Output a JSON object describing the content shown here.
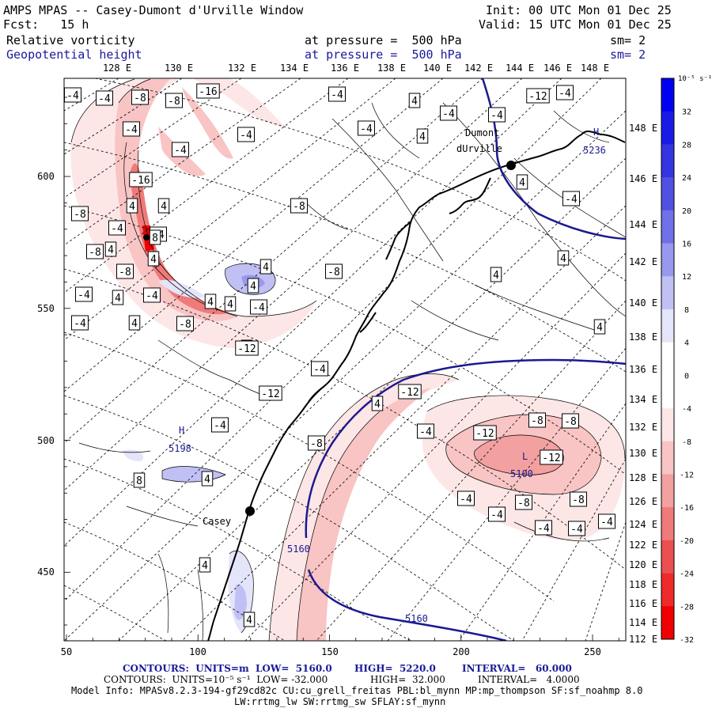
{
  "header": {
    "title": "AMPS MPAS -- Casey-Dumont d'Urville Window",
    "fcst": "Fcst:   15 h",
    "init": "Init: 00 UTC Mon 01 Dec 25",
    "valid": "Valid: 15 UTC Mon 01 Dec 25",
    "field1_name": "Relative vorticity",
    "field1_level": "at pressure =  500 hPa",
    "field1_sm": "sm= 2",
    "field2_name": "Geopotential height",
    "field2_level": "at pressure =  500 hPa",
    "field2_sm": "sm= 2"
  },
  "top_lon_labels": [
    "128 E",
    "130 E",
    "132 E",
    "134 E",
    "136 E",
    "138 E",
    "140 E",
    "142 E",
    "144 E",
    "146 E",
    "148 E"
  ],
  "right_lon_labels": [
    "148 E",
    "146 E",
    "144 E",
    "142 E",
    "140 E",
    "138 E",
    "136 E",
    "134 E",
    "132 E",
    "130 E",
    "128 E",
    "126 E",
    "124 E",
    "122 E",
    "120 E",
    "118 E",
    "116 E",
    "114 E",
    "112 E"
  ],
  "x_ticks": [
    "50",
    "100",
    "150",
    "200",
    "250"
  ],
  "y_ticks": [
    "600",
    "550",
    "500",
    "450"
  ],
  "colorbar": {
    "unit_label": "10⁻⁵ s⁻¹",
    "labels": [
      "32",
      "28",
      "24",
      "20",
      "16",
      "12",
      "8",
      "4",
      "0",
      "-4",
      "-8",
      "-12",
      "-16",
      "-20",
      "-24",
      "-28",
      "-32"
    ],
    "colors": [
      "#0000f0",
      "#1a1ae6",
      "#3434e0",
      "#5050e2",
      "#7070e8",
      "#9898ee",
      "#c0c0f4",
      "#e4e4fa",
      "#ffffff",
      "#ffffff",
      "#fde6e6",
      "#f8c4c4",
      "#f2a0a0",
      "#ee7a7a",
      "#ea5050",
      "#ee2a2a",
      "#f00000"
    ]
  },
  "places": {
    "dumont": "Dumont",
    "durville": "dUrville",
    "casey": "Casey"
  },
  "highs_lows": {
    "h_west": "H",
    "h_west_val": "5198",
    "h_ne": "H",
    "h_ne_val": "5236",
    "l_east": "L",
    "l_east_val": "5100"
  },
  "contour_labels_height": [
    "5160",
    "5160"
  ],
  "contour_labels_vort": [
    "-4",
    "-4",
    "-8",
    "-8",
    "-16",
    "-4",
    "-4",
    "-4",
    "-4",
    "-4",
    "4",
    "4",
    "-4",
    "-4",
    "-12",
    "-4",
    "4",
    "-4",
    "-8",
    "-16",
    "4",
    "-4",
    "4",
    "4",
    "-8",
    "4",
    "-4",
    "-8",
    "-4",
    "4",
    "-4",
    "8",
    "-8",
    "4",
    "4",
    "4",
    "-4",
    "4",
    "-8",
    "-12",
    "-8",
    "-4",
    "4",
    "4",
    "-12",
    "4",
    "-4",
    "-12",
    "-8",
    "-4",
    "4",
    "8",
    "-4",
    "-12",
    "-8",
    "-8",
    "-12",
    "-4",
    "-8",
    "-4",
    "-8",
    "-4",
    "-4",
    "-4",
    "4",
    "4",
    "4",
    "4",
    "4"
  ],
  "footer": {
    "line1_a": "CONTOURS:  UNITS=m  LOW=  5160.0",
    "line1_b": "HIGH=  5220.0",
    "line1_c": "INTERVAL=   60.000",
    "line2_a": "CONTOURS:  UNITS=10⁻⁵ s⁻¹  LOW= -32.000",
    "line2_b": "HIGH=  32.000",
    "line2_c": "INTERVAL=   4.0000",
    "line3": "Model Info: MPASv8.2.3-194-gf29cd82c CU:cu_grell_freitas PBL:bl_mynn MP:mp_thompson SF:sf_noahmp 8.0",
    "line4": "LW:rrtmg_lw SW:rrtmg_sw SFLAY:sf_mynn"
  }
}
